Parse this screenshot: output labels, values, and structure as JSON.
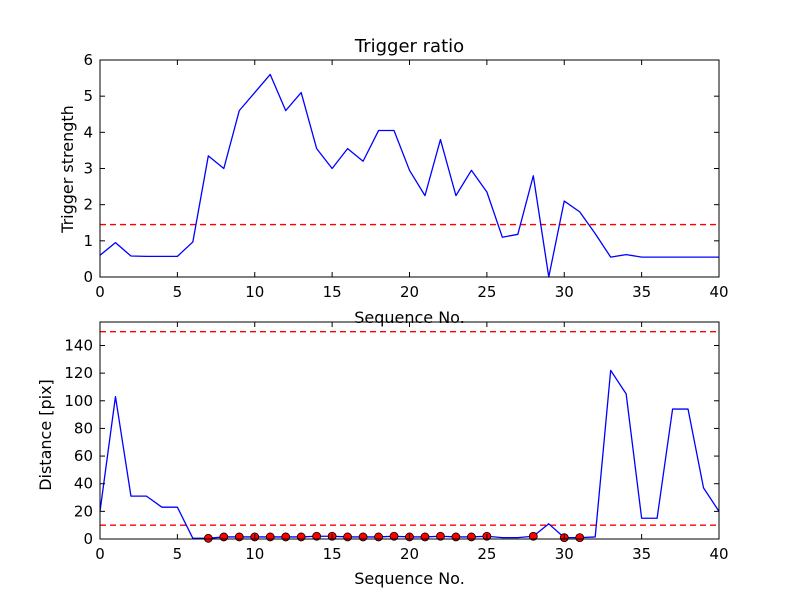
{
  "chart_data": [
    {
      "type": "line",
      "title": "Trigger ratio",
      "xlabel": "Sequence No.",
      "ylabel": "Trigger strength",
      "xlim": [
        0,
        40
      ],
      "ylim": [
        0,
        6
      ],
      "xticks": [
        "0",
        "5",
        "10",
        "15",
        "20",
        "25",
        "30",
        "35",
        "40"
      ],
      "yticks": [
        "0",
        "1",
        "2",
        "3",
        "4",
        "5",
        "6"
      ],
      "grid": false,
      "series": [
        {
          "color": "#0000ff",
          "style": "solid",
          "x": [
            0,
            1,
            2,
            3,
            4,
            5,
            6,
            7,
            8,
            9,
            10,
            11,
            12,
            13,
            14,
            15,
            16,
            17,
            18,
            19,
            20,
            21,
            22,
            23,
            24,
            25,
            26,
            27,
            28,
            29,
            30,
            31,
            32,
            33,
            34,
            35,
            36,
            37,
            38,
            39,
            40
          ],
          "y": [
            0.6,
            0.95,
            0.58,
            0.57,
            0.57,
            0.57,
            0.97,
            3.35,
            3.0,
            4.6,
            5.1,
            5.6,
            4.6,
            5.1,
            3.55,
            3.0,
            3.55,
            3.2,
            4.05,
            4.05,
            2.95,
            2.25,
            3.8,
            2.25,
            2.95,
            2.35,
            1.1,
            1.18,
            2.8,
            0.0,
            2.1,
            1.8,
            1.2,
            0.55,
            0.62,
            0.55,
            0.55,
            0.55,
            0.55,
            0.55,
            0.55
          ]
        }
      ],
      "threshold_lines": [
        {
          "y": 1.45,
          "color": "#ff0000",
          "style": "dashed"
        }
      ]
    },
    {
      "type": "line",
      "title": "",
      "xlabel": "Sequence No.",
      "ylabel": "Distance [pix]",
      "xlim": [
        0,
        40
      ],
      "ylim": [
        0,
        157
      ],
      "xticks": [
        "0",
        "5",
        "10",
        "15",
        "20",
        "25",
        "30",
        "35",
        "40"
      ],
      "yticks": [
        "0",
        "20",
        "40",
        "60",
        "80",
        "100",
        "120",
        "140"
      ],
      "grid": false,
      "series": [
        {
          "color": "#0000ff",
          "style": "solid",
          "x": [
            0,
            1,
            2,
            3,
            4,
            5,
            6,
            7,
            8,
            9,
            10,
            11,
            12,
            13,
            14,
            15,
            16,
            17,
            18,
            19,
            20,
            21,
            22,
            23,
            24,
            25,
            26,
            27,
            28,
            29,
            30,
            31,
            32,
            33,
            34,
            35,
            36,
            37,
            38,
            39,
            40
          ],
          "y": [
            20,
            103,
            31,
            31,
            23,
            23,
            0.5,
            0.5,
            1.5,
            1.5,
            1.5,
            1.5,
            1.5,
            1.5,
            2,
            2,
            1.5,
            1.5,
            1.5,
            2,
            1.5,
            1.5,
            2,
            1.5,
            1.5,
            2,
            1,
            1,
            2,
            11,
            1,
            1,
            1.5,
            122,
            105,
            15,
            15,
            94,
            94,
            37,
            20
          ]
        }
      ],
      "markers": {
        "color": "#ff0000",
        "edge_color": "#000000",
        "x": [
          7,
          8,
          9,
          10,
          11,
          12,
          13,
          14,
          15,
          16,
          17,
          18,
          19,
          20,
          21,
          22,
          23,
          24,
          25,
          28,
          30,
          31
        ],
        "y": [
          0.5,
          1.5,
          1.5,
          1.5,
          1.5,
          1.5,
          1.5,
          2,
          2,
          1.5,
          1.5,
          1.5,
          2,
          1.5,
          1.5,
          2,
          1.5,
          1.5,
          2,
          2,
          1,
          1
        ]
      },
      "threshold_lines": [
        {
          "y": 150,
          "color": "#ff0000",
          "style": "dashed"
        },
        {
          "y": 10,
          "color": "#ff0000",
          "style": "dashed"
        }
      ]
    }
  ]
}
